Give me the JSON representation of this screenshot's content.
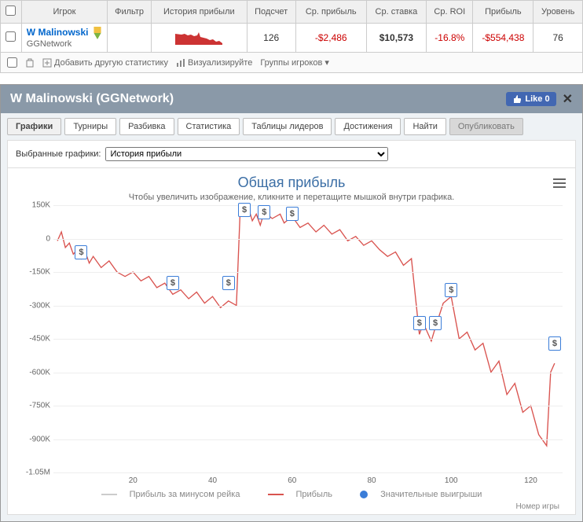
{
  "table": {
    "headers": [
      "",
      "Игрок",
      "Фильтр",
      "История прибыли",
      "Подсчет",
      "Ср. прибыль",
      "Ср. ставка",
      "Ср. ROI",
      "Прибыль",
      "Уровень"
    ],
    "row": {
      "player_name": "W Malinowski",
      "player_network": "GGNetwork",
      "count": "126",
      "avg_profit": "-$2,486",
      "avg_stake": "$10,573",
      "avg_roi": "-16.8%",
      "profit": "-$554,438",
      "level": "76"
    },
    "sparkline_color": "#cc3333",
    "badge_colors": {
      "top": "#f0c040",
      "bottom": "#7cb342"
    }
  },
  "toolbar": {
    "add_stat": "Добавить другую статистику",
    "visualize": "Визуализируйте",
    "player_groups": "Группы игроков"
  },
  "panel": {
    "title": "W Malinowski (GGNetwork)",
    "like": "Like 0",
    "tabs": [
      "Графики",
      "Турниры",
      "Разбивка",
      "Статистика",
      "Таблицы лидеров",
      "Достижения",
      "Найти"
    ],
    "publish_tab": "Опубликовать",
    "active_tab_index": 0,
    "select_label": "Выбранные графики:",
    "select_value": "История прибыли"
  },
  "chart": {
    "title": "Общая прибыль",
    "subtitle": "Чтобы увеличить изображение, кликните и перетащите мышкой внутри графика.",
    "ylim": [
      -1050000,
      150000
    ],
    "yticks": [
      150000,
      0,
      -150000,
      -300000,
      -450000,
      -600000,
      -750000,
      -900000,
      -1050000
    ],
    "ytick_labels": [
      "150K",
      "0",
      "-150K",
      "-300K",
      "-450K",
      "-600K",
      "-750K",
      "-900K",
      "-1.05M"
    ],
    "xlim": [
      0,
      128
    ],
    "xticks": [
      20,
      40,
      60,
      80,
      100,
      120
    ],
    "line_color": "#d9534f",
    "marker_border": "#3b7dd8",
    "grid_color": "#eeeeee",
    "x_axis_title": "Номер игры",
    "data": [
      [
        1,
        -10000
      ],
      [
        2,
        30000
      ],
      [
        3,
        -40000
      ],
      [
        4,
        -20000
      ],
      [
        5,
        -70000
      ],
      [
        6,
        -50000
      ],
      [
        7,
        -90000
      ],
      [
        8,
        -60000
      ],
      [
        9,
        -110000
      ],
      [
        10,
        -80000
      ],
      [
        12,
        -130000
      ],
      [
        14,
        -100000
      ],
      [
        16,
        -150000
      ],
      [
        18,
        -170000
      ],
      [
        20,
        -150000
      ],
      [
        22,
        -190000
      ],
      [
        24,
        -170000
      ],
      [
        26,
        -220000
      ],
      [
        28,
        -200000
      ],
      [
        30,
        -250000
      ],
      [
        32,
        -230000
      ],
      [
        34,
        -270000
      ],
      [
        36,
        -240000
      ],
      [
        38,
        -290000
      ],
      [
        40,
        -260000
      ],
      [
        42,
        -310000
      ],
      [
        44,
        -280000
      ],
      [
        46,
        -300000
      ],
      [
        47,
        150000
      ],
      [
        48,
        120000
      ],
      [
        49,
        140000
      ],
      [
        50,
        80000
      ],
      [
        51,
        110000
      ],
      [
        52,
        60000
      ],
      [
        53,
        120000
      ],
      [
        55,
        90000
      ],
      [
        57,
        110000
      ],
      [
        58,
        70000
      ],
      [
        60,
        100000
      ],
      [
        62,
        50000
      ],
      [
        64,
        70000
      ],
      [
        66,
        30000
      ],
      [
        68,
        60000
      ],
      [
        70,
        20000
      ],
      [
        72,
        40000
      ],
      [
        74,
        -10000
      ],
      [
        76,
        10000
      ],
      [
        78,
        -30000
      ],
      [
        80,
        -10000
      ],
      [
        82,
        -50000
      ],
      [
        84,
        -80000
      ],
      [
        86,
        -60000
      ],
      [
        88,
        -120000
      ],
      [
        90,
        -90000
      ],
      [
        92,
        -430000
      ],
      [
        93,
        -380000
      ],
      [
        95,
        -460000
      ],
      [
        96,
        -400000
      ],
      [
        98,
        -290000
      ],
      [
        100,
        -260000
      ],
      [
        102,
        -450000
      ],
      [
        104,
        -420000
      ],
      [
        106,
        -500000
      ],
      [
        108,
        -470000
      ],
      [
        110,
        -600000
      ],
      [
        112,
        -550000
      ],
      [
        114,
        -700000
      ],
      [
        116,
        -650000
      ],
      [
        118,
        -780000
      ],
      [
        120,
        -750000
      ],
      [
        122,
        -880000
      ],
      [
        124,
        -930000
      ],
      [
        125,
        -600000
      ],
      [
        126,
        -560000
      ]
    ],
    "markers": [
      {
        "x": 7,
        "y": -60000
      },
      {
        "x": 30,
        "y": -200000
      },
      {
        "x": 44,
        "y": -200000
      },
      {
        "x": 48,
        "y": 130000
      },
      {
        "x": 53,
        "y": 120000
      },
      {
        "x": 60,
        "y": 110000
      },
      {
        "x": 92,
        "y": -380000
      },
      {
        "x": 96,
        "y": -380000
      },
      {
        "x": 100,
        "y": -230000
      },
      {
        "x": 126,
        "y": -470000
      }
    ],
    "legend": {
      "rake": "Прибыль за минусом рейка",
      "profit": "Прибыль",
      "wins": "Значительные выигрыши",
      "rake_color": "#cccccc",
      "profit_color": "#d9534f",
      "wins_color": "#3b7dd8"
    }
  }
}
